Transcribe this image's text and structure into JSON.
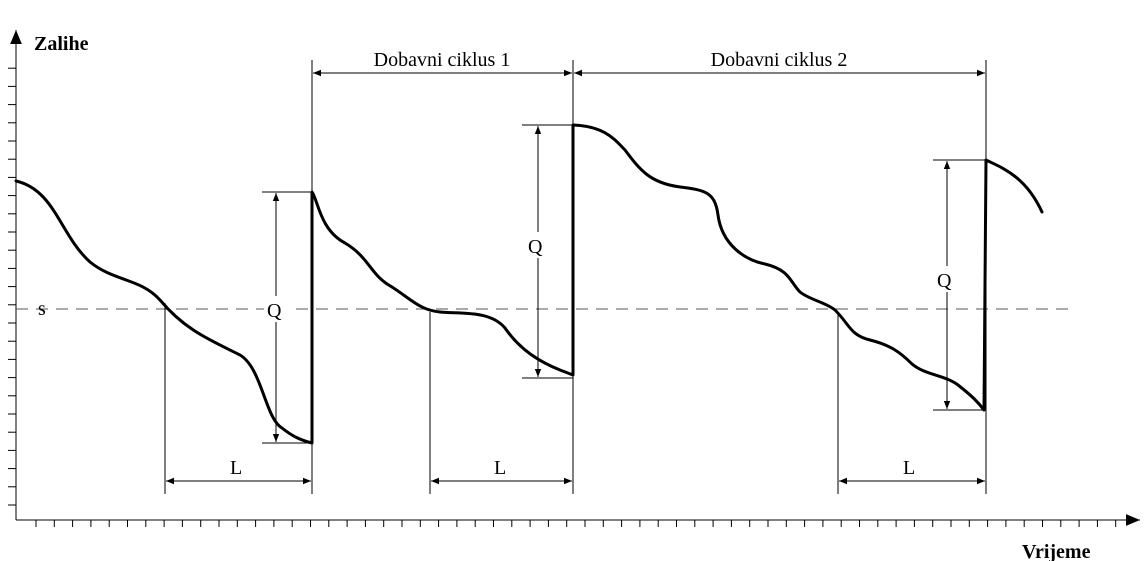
{
  "axes": {
    "y_label": "Zalihe",
    "x_label": "Vrijeme"
  },
  "threshold": {
    "label": "s"
  },
  "cycles": [
    {
      "label": "Dobavni ciklus 1"
    },
    {
      "label": "Dobavni ciklus 2"
    }
  ],
  "order_quantity": {
    "label": "Q"
  },
  "lead_time": {
    "label": "L"
  },
  "colors": {
    "ink": "#000000",
    "dashed_line": "#555555",
    "background": "#ffffff"
  }
}
